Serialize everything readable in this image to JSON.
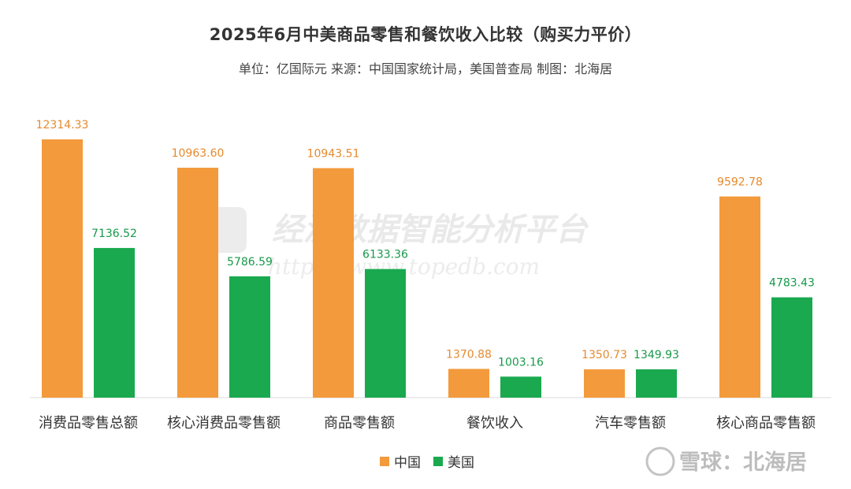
{
  "title": "2025年6月中美商品零售和餐饮收入比较（购买力平价）",
  "subtitle": "单位：亿国际元 来源：中国国家统计局，美国普查局 制图：北海居",
  "watermark": {
    "main": "经济数据智能分析平台",
    "url": "https://www.topedb.com",
    "logo": "EDB"
  },
  "footer_watermark": "雪球：北海居",
  "colors": {
    "china": "#f39a3c",
    "usa": "#1aa94f",
    "china_label": "#e58a2e",
    "usa_label": "#17994a"
  },
  "chart_data": {
    "type": "bar",
    "categories": [
      "消费品零售总额",
      "核心消费品零售额",
      "商品零售额",
      "餐饮收入",
      "汽车零售额",
      "核心商品零售额"
    ],
    "series": [
      {
        "name": "中国",
        "values": [
          12314.33,
          10963.6,
          10943.51,
          1370.88,
          1350.73,
          9592.78
        ]
      },
      {
        "name": "美国",
        "values": [
          7136.52,
          5786.59,
          6133.36,
          1003.16,
          1349.93,
          4783.43
        ]
      }
    ],
    "ylim": [
      0,
      12314.33
    ],
    "legend_position": "bottom",
    "grid": false,
    "data_labels": true
  }
}
